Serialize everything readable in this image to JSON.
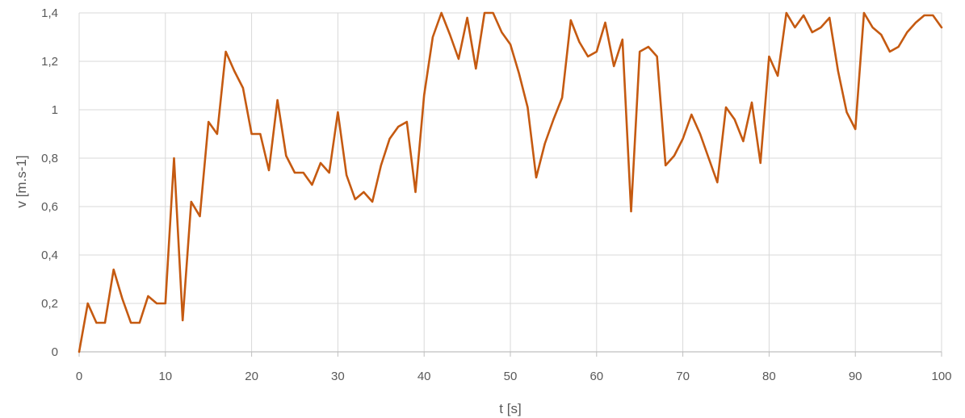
{
  "chart_data": {
    "type": "line",
    "xlabel": "t [s]",
    "ylabel": "v [m.s-1]",
    "xlim": [
      0,
      100
    ],
    "ylim": [
      0,
      1.4
    ],
    "x_ticks": [
      0,
      10,
      20,
      30,
      40,
      50,
      60,
      70,
      80,
      90,
      100
    ],
    "x_tick_labels": [
      "0",
      "10",
      "20",
      "30",
      "40",
      "50",
      "60",
      "70",
      "80",
      "90",
      "100"
    ],
    "y_ticks": [
      0,
      0.2,
      0.4,
      0.6,
      0.8,
      1.0,
      1.2,
      1.4
    ],
    "y_tick_labels": [
      "0",
      "0,2",
      "0,4",
      "0,6",
      "0,8",
      "1",
      "1,2",
      "1,4"
    ],
    "grid": true,
    "legend": "none",
    "colors": {
      "line": "#c55a11",
      "grid": "#d9d9d9",
      "axis": "#bfbfbf"
    },
    "series": [
      {
        "x": [
          0,
          1,
          2,
          3,
          4,
          5,
          6,
          7,
          8,
          9,
          10,
          11,
          12,
          13,
          14,
          15,
          16,
          17,
          18,
          19,
          20,
          21,
          22,
          23,
          24,
          25,
          26,
          27,
          28,
          29,
          30,
          31,
          32,
          33,
          34,
          35,
          36,
          37,
          38,
          39,
          40,
          41,
          42,
          43,
          44,
          45,
          46,
          47,
          48,
          49,
          50,
          51,
          52,
          53,
          54,
          55,
          56,
          57,
          58,
          59,
          60,
          61,
          62,
          63,
          64,
          65,
          66,
          67,
          68,
          69,
          70,
          71,
          72,
          73,
          74,
          75,
          76,
          77,
          78,
          79,
          80,
          81,
          82,
          83,
          84,
          85,
          86,
          87,
          88,
          89,
          90,
          91,
          92,
          93,
          94,
          95,
          96,
          97,
          98,
          99,
          100
        ],
        "y": [
          0,
          0.2,
          0.12,
          0.12,
          0.34,
          0.22,
          0.12,
          0.12,
          0.23,
          0.2,
          0.2,
          0.8,
          0.13,
          0.62,
          0.56,
          0.95,
          0.9,
          1.24,
          1.16,
          1.09,
          0.9,
          0.9,
          0.75,
          1.04,
          0.81,
          0.74,
          0.74,
          0.69,
          0.78,
          0.74,
          0.99,
          0.73,
          0.63,
          0.66,
          0.62,
          0.77,
          0.88,
          0.93,
          0.95,
          0.66,
          1.06,
          1.3,
          1.4,
          1.31,
          1.21,
          1.38,
          1.17,
          1.4,
          1.4,
          1.32,
          1.27,
          1.15,
          1.01,
          0.72,
          0.86,
          0.96,
          1.05,
          1.37,
          1.28,
          1.22,
          1.24,
          1.36,
          1.18,
          1.29,
          0.58,
          1.24,
          1.26,
          1.22,
          0.77,
          0.81,
          0.88,
          0.98,
          0.9,
          0.8,
          0.7,
          1.01,
          0.96,
          0.87,
          1.03,
          0.78,
          1.22,
          1.14,
          1.4,
          1.34,
          1.39,
          1.32,
          1.34,
          1.38,
          1.16,
          0.99,
          0.92,
          1.4,
          1.34,
          1.31,
          1.24,
          1.26,
          1.32,
          1.36,
          1.39,
          1.39,
          1.34
        ]
      }
    ]
  }
}
